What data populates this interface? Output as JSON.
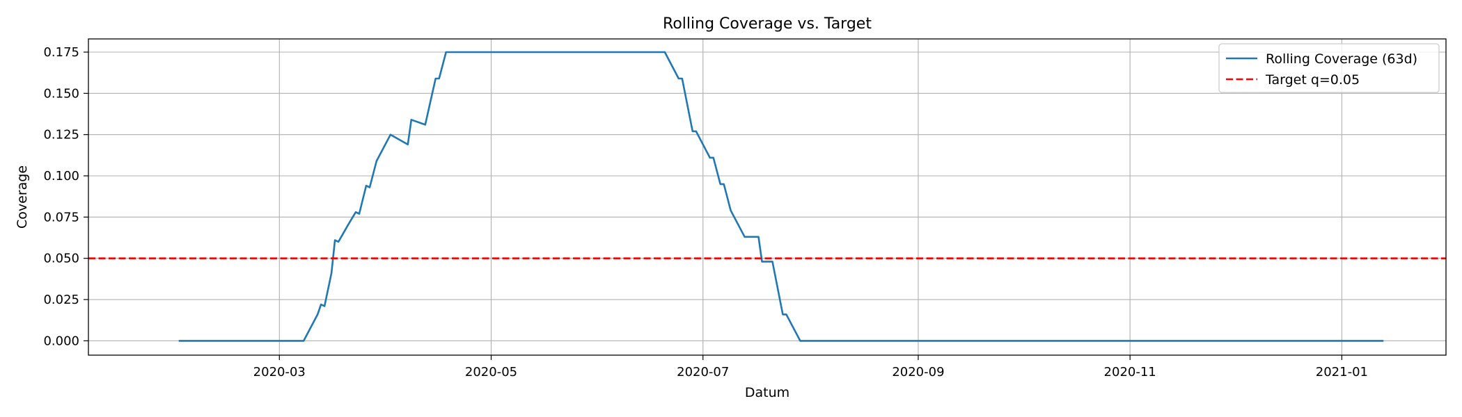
{
  "chart_data": {
    "type": "line",
    "title": "Rolling Coverage vs. Target",
    "xlabel": "Datum",
    "ylabel": "Coverage",
    "x_type": "date",
    "xlim": [
      "2020-01-06",
      "2021-01-31"
    ],
    "ylim": [
      -0.0087,
      0.183
    ],
    "xticks": [
      "2020-03",
      "2020-05",
      "2020-07",
      "2020-09",
      "2020-11",
      "2021-01"
    ],
    "yticks": [
      "0.000",
      "0.025",
      "0.050",
      "0.075",
      "0.100",
      "0.125",
      "0.150",
      "0.175"
    ],
    "grid": true,
    "legend_position": "top-right",
    "series": [
      {
        "name": "Rolling Coverage (63d)",
        "color": "#1f77b4",
        "style": "solid",
        "points": [
          [
            "2020-02-01",
            0.0
          ],
          [
            "2020-03-08",
            0.0
          ],
          [
            "2020-03-10",
            0.008
          ],
          [
            "2020-03-12",
            0.016
          ],
          [
            "2020-03-13",
            0.022
          ],
          [
            "2020-03-14",
            0.021
          ],
          [
            "2020-03-16",
            0.041
          ],
          [
            "2020-03-17",
            0.061
          ],
          [
            "2020-03-18",
            0.06
          ],
          [
            "2020-03-21",
            0.071
          ],
          [
            "2020-03-23",
            0.078
          ],
          [
            "2020-03-24",
            0.077
          ],
          [
            "2020-03-26",
            0.094
          ],
          [
            "2020-03-27",
            0.093
          ],
          [
            "2020-03-29",
            0.109
          ],
          [
            "2020-04-02",
            0.125
          ],
          [
            "2020-04-07",
            0.119
          ],
          [
            "2020-04-08",
            0.134
          ],
          [
            "2020-04-12",
            0.131
          ],
          [
            "2020-04-15",
            0.159
          ],
          [
            "2020-04-16",
            0.159
          ],
          [
            "2020-04-18",
            0.175
          ],
          [
            "2020-06-20",
            0.175
          ],
          [
            "2020-06-24",
            0.159
          ],
          [
            "2020-06-25",
            0.159
          ],
          [
            "2020-06-28",
            0.127
          ],
          [
            "2020-06-29",
            0.127
          ],
          [
            "2020-07-03",
            0.111
          ],
          [
            "2020-07-04",
            0.111
          ],
          [
            "2020-07-06",
            0.095
          ],
          [
            "2020-07-07",
            0.095
          ],
          [
            "2020-07-09",
            0.079
          ],
          [
            "2020-07-13",
            0.063
          ],
          [
            "2020-07-17",
            0.063
          ],
          [
            "2020-07-18",
            0.048
          ],
          [
            "2020-07-21",
            0.048
          ],
          [
            "2020-07-24",
            0.016
          ],
          [
            "2020-07-25",
            0.016
          ],
          [
            "2020-07-29",
            0.0
          ],
          [
            "2021-01-13",
            0.0
          ]
        ]
      },
      {
        "name": "Target q=0.05",
        "color": "#ff0000",
        "style": "dashed",
        "constant": 0.05
      }
    ]
  }
}
